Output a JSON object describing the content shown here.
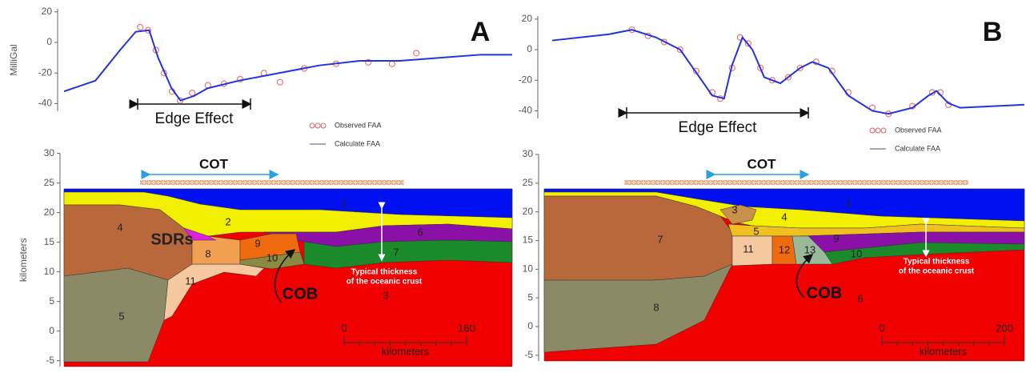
{
  "chart_data": [
    {
      "type": "line",
      "panel": "A",
      "y_label": "MilliGal",
      "annotation": "Edge Effect",
      "xlim": [
        0,
        100
      ],
      "ylim": [
        -45,
        22
      ],
      "yticks": [
        20,
        0,
        -20,
        -40
      ],
      "series": [
        {
          "name": "Observed FAA",
          "color": "#e06060",
          "marker": "circle",
          "x": [
            17,
            18.75,
            20.5,
            22.3,
            24.1,
            25.9,
            28.6,
            32.1,
            35.7,
            39.3,
            44.6,
            48.2,
            53.6,
            60.7,
            67.9,
            73.2,
            78.6
          ],
          "values": [
            10,
            8,
            -5,
            -20,
            -32,
            -38,
            -33,
            -28,
            -27,
            -24,
            -20,
            -26,
            -17,
            -14,
            -13,
            -14,
            -7
          ]
        },
        {
          "name": "Calculate FAA",
          "color": "#2233dd",
          "marker": "line",
          "x": [
            0,
            7,
            12.5,
            16,
            19,
            21,
            24,
            26,
            29,
            32,
            39,
            48,
            57,
            66,
            75,
            84,
            93,
            100
          ],
          "values": [
            -32,
            -25,
            -5,
            7,
            8,
            -10,
            -30,
            -38,
            -35,
            -30,
            -25,
            -20,
            -15,
            -12,
            -12,
            -10,
            -8,
            -8
          ]
        }
      ]
    },
    {
      "type": "line",
      "panel": "B",
      "annotation": "Edge Effect",
      "xlim": [
        0,
        100
      ],
      "ylim": [
        -45,
        22
      ],
      "yticks": [
        20,
        0,
        -20,
        -40
      ],
      "series": [
        {
          "name": "Observed FAA",
          "color": "#e06060",
          "marker": "circle",
          "x": [
            16.9,
            20.3,
            23.7,
            27.1,
            30.5,
            33.9,
            35.6,
            38.1,
            39.8,
            41.5,
            44.1,
            46.6,
            50,
            52.5,
            55.9,
            59.3,
            62.7,
            67.8,
            71.2,
            76.3,
            80.5,
            82.2,
            83.9
          ],
          "values": [
            13,
            9,
            5,
            0,
            -14,
            -28,
            -32,
            -12,
            8,
            4,
            -12,
            -20,
            -18,
            -12,
            -8,
            -14,
            -28,
            -38,
            -42,
            -37,
            -28,
            -28,
            -36
          ]
        },
        {
          "name": "Calculate FAA",
          "color": "#2233dd",
          "marker": "line",
          "x": [
            0,
            11.9,
            16.9,
            22,
            27.1,
            30.5,
            33.9,
            36.4,
            38.1,
            40.3,
            42.4,
            44.9,
            48.3,
            52.5,
            55.1,
            58.5,
            62.7,
            67.8,
            71.2,
            76.3,
            79.7,
            81.4,
            83.9,
            86.4,
            100
          ],
          "values": [
            6,
            10,
            13,
            8,
            0,
            -15,
            -30,
            -32,
            -10,
            8,
            0,
            -18,
            -22,
            -12,
            -8,
            -12,
            -30,
            -40,
            -42,
            -38,
            -30,
            -27,
            -35,
            -38,
            -36
          ]
        }
      ]
    }
  ],
  "sections": [
    {
      "y_label": "kilometers",
      "ylim": [
        -6,
        30
      ],
      "yticks": [
        -5,
        0,
        5,
        10,
        15,
        20,
        25,
        30
      ],
      "cot": "COT",
      "cob": "COB",
      "sdrs": "SDRs",
      "note": [
        "Typical thickness",
        "of the oceanic crust"
      ],
      "units": [
        "1",
        "2",
        "3",
        "4",
        "5",
        "6",
        "7",
        "8",
        "9",
        "10",
        "11"
      ],
      "scale": {
        "ticks": [
          0,
          160
        ],
        "label": "kilometers"
      }
    },
    {
      "ylim": [
        -6,
        30
      ],
      "yticks": [
        -5,
        0,
        5,
        10,
        15,
        20,
        25,
        30
      ],
      "cot": "COT",
      "cob": "COB",
      "note": [
        "Typical thickness",
        "of the oceanic crust"
      ],
      "units": [
        "1",
        "3",
        "4",
        "5",
        "6",
        "7",
        "8",
        "9",
        "10",
        "11",
        "12",
        "13"
      ],
      "scale": {
        "ticks": [
          0,
          200
        ],
        "label": "kilometers"
      }
    }
  ]
}
